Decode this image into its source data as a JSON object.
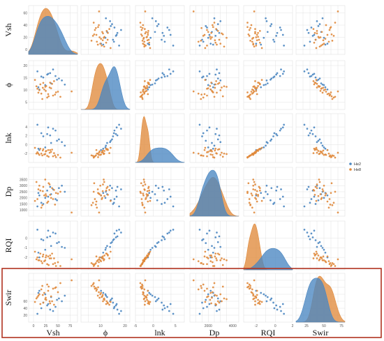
{
  "chart_data": {
    "type": "scatter-matrix",
    "variables": [
      {
        "key": "Vsh",
        "label": "Vsh",
        "range": [
          -10,
          90
        ],
        "ticks": [
          0,
          25,
          50,
          75
        ]
      },
      {
        "key": "phi",
        "label": "ϕ",
        "range": [
          2,
          22
        ],
        "ticks": [
          5,
          10,
          15,
          20
        ]
      },
      {
        "key": "lnk",
        "label": "lnk",
        "range": [
          -4,
          7
        ],
        "ticks": [
          -2,
          0,
          2,
          4
        ]
      },
      {
        "key": "Dp",
        "label": "Dp",
        "range": [
          500,
          4500
        ],
        "ticks": [
          1000,
          1500,
          2000,
          2500,
          3000,
          3500
        ],
        "xticks": [
          0,
          2000,
          4000
        ]
      },
      {
        "key": "RQI",
        "label": "RQI",
        "range": [
          -3.3,
          1.8
        ],
        "ticks": [
          -2,
          -1,
          0
        ],
        "xticks": [
          -2,
          0,
          1
        ]
      },
      {
        "key": "Swir",
        "label": "Swir",
        "range": [
          10,
          80
        ],
        "ticks": [
          20,
          30,
          40,
          50,
          60,
          70
        ],
        "xticks": [
          25,
          50,
          75
        ]
      }
    ],
    "x_tick_labels": [
      [
        "0",
        "25",
        "50",
        "75"
      ],
      [
        "10",
        "20"
      ],
      [
        "-5",
        "0",
        "5"
      ],
      [
        "2000",
        "4000"
      ],
      [
        "-2",
        "0",
        "2"
      ],
      [
        "25",
        "50",
        "75"
      ]
    ],
    "y_tick_labels": [
      [
        "0",
        "20",
        "40",
        "60",
        "80"
      ],
      [
        "5",
        "10",
        "15",
        "20"
      ],
      [
        "-2",
        "0",
        "2",
        "4"
      ],
      [
        "1000",
        "1500",
        "2000",
        "2500",
        "3000",
        "3500"
      ],
      [
        "-2",
        "-1",
        "0"
      ],
      [
        "20",
        "40",
        "60"
      ]
    ],
    "legend": {
      "entries": [
        "He2",
        "He8"
      ],
      "position": "right of row 3"
    },
    "series": [
      {
        "name": "He2",
        "color": "#4a86c1",
        "points": [
          [
            12,
            10.2,
            -1.2,
            2200,
            -2.0,
            55
          ],
          [
            20,
            15.1,
            1.9,
            1500,
            -0.2,
            38
          ],
          [
            28,
            16.3,
            2.4,
            2600,
            0.1,
            34
          ],
          [
            45,
            15.7,
            3.2,
            1900,
            0.5,
            32
          ],
          [
            52,
            14.7,
            1.2,
            2800,
            -0.4,
            44
          ],
          [
            36,
            12.7,
            0.4,
            2300,
            -0.8,
            46
          ],
          [
            8,
            17.6,
            4.5,
            1300,
            0.9,
            22
          ],
          [
            58,
            13.9,
            0.6,
            3000,
            -0.9,
            40
          ],
          [
            24,
            12.0,
            -0.6,
            2000,
            -1.2,
            50
          ],
          [
            40,
            18.4,
            3.6,
            2700,
            0.6,
            26
          ],
          [
            16,
            15.5,
            2.6,
            1600,
            -0.1,
            30
          ],
          [
            64,
            12.2,
            -0.2,
            2500,
            -1.0,
            48
          ],
          [
            30,
            16.6,
            3.9,
            2100,
            0.8,
            36
          ],
          [
            48,
            14.2,
            0.9,
            1800,
            -0.5,
            42
          ],
          [
            10,
            11.1,
            -0.9,
            2400,
            -1.5,
            52
          ],
          [
            34,
            16.9,
            2.1,
            2900,
            0.2,
            28
          ]
        ]
      },
      {
        "name": "He8",
        "color": "#e08a3c",
        "points": [
          [
            10,
            8.9,
            -2.0,
            2700,
            -2.3,
            48
          ],
          [
            18,
            6.3,
            -2.4,
            1400,
            -2.6,
            62
          ],
          [
            25,
            9.6,
            -1.5,
            2300,
            -2.0,
            45
          ],
          [
            33,
            11.0,
            -1.8,
            3100,
            -2.1,
            40
          ],
          [
            40,
            7.7,
            -2.6,
            1900,
            -2.7,
            58
          ],
          [
            14,
            12.3,
            -0.9,
            2600,
            -1.6,
            36
          ],
          [
            22,
            10.2,
            -2.2,
            2200,
            -2.4,
            52
          ],
          [
            30,
            8.3,
            -1.2,
            1700,
            -1.9,
            55
          ],
          [
            6,
            11.5,
            -2.0,
            3300,
            -2.2,
            44
          ],
          [
            46,
            9.0,
            -2.8,
            2400,
            -2.9,
            60
          ],
          [
            20,
            12.9,
            -1.0,
            2900,
            -1.7,
            38
          ],
          [
            28,
            6.9,
            -2.5,
            1600,
            -2.7,
            64
          ],
          [
            36,
            10.7,
            -1.6,
            2000,
            -2.1,
            47
          ],
          [
            12,
            9.9,
            -2.3,
            3000,
            -2.3,
            50
          ],
          [
            55,
            7.2,
            -2.9,
            2500,
            -2.9,
            66
          ],
          [
            26,
            11.6,
            -1.4,
            2150,
            -1.8,
            42
          ],
          [
            16,
            8.5,
            -2.0,
            1200,
            -2.4,
            57
          ],
          [
            38,
            12.5,
            -1.1,
            2800,
            -1.6,
            40
          ],
          [
            8,
            10.5,
            -1.7,
            1900,
            -2.0,
            46
          ],
          [
            42,
            13.6,
            -1.9,
            2650,
            -2.1,
            35
          ],
          [
            50,
            9.3,
            -2.3,
            2350,
            -2.5,
            53
          ],
          [
            3,
            14.1,
            -0.7,
            1750,
            -1.4,
            39
          ],
          [
            31,
            7.4,
            -2.7,
            3200,
            -2.8,
            61
          ],
          [
            19,
            10.9,
            -1.3,
            2550,
            -1.9,
            49
          ],
          [
            78,
            9.4,
            -1.8,
            800,
            -2.2,
            70
          ],
          [
            24,
            11.3,
            -2.1,
            3500,
            -2.3,
            43
          ],
          [
            34,
            13.0,
            -1.2,
            2250,
            -1.8,
            37
          ],
          [
            44,
            8.1,
            -2.4,
            1450,
            -2.6,
            59
          ]
        ]
      }
    ]
  }
}
